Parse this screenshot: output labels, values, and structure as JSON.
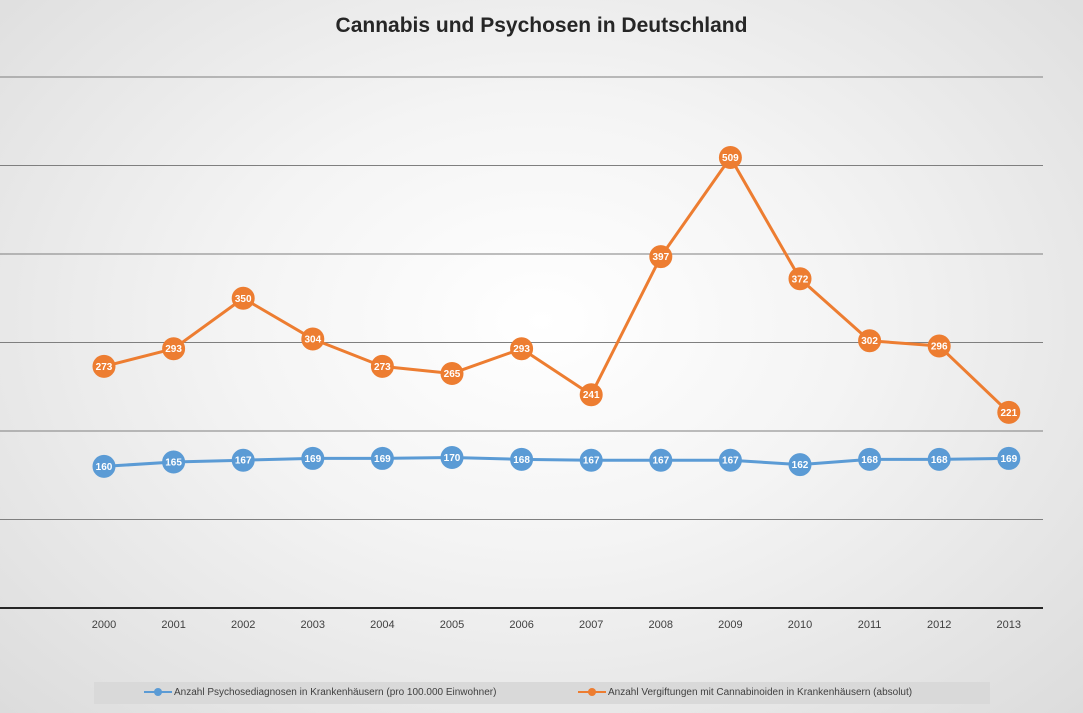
{
  "chart_data": {
    "type": "line",
    "title": "Cannabis und Psychosen in Deutschland",
    "xlabel": "",
    "ylabel": "",
    "categories": [
      "2000",
      "2001",
      "2002",
      "2003",
      "2004",
      "2005",
      "2006",
      "2007",
      "2008",
      "2009",
      "2010",
      "2011",
      "2012",
      "2013"
    ],
    "series": [
      {
        "name": "Anzahl Psychosediagnosen in Krankenhäusern (pro 100.000 Einwohner)",
        "color": "#5b9bd5",
        "values": [
          160,
          165,
          167,
          169,
          169,
          170,
          168,
          167,
          167,
          167,
          162,
          168,
          168,
          169
        ]
      },
      {
        "name": "Anzahl Vergiftungen mit Cannabinoiden in Krankenhäusern (absolut)",
        "color": "#ed7d31",
        "values": [
          273,
          293,
          350,
          304,
          273,
          265,
          293,
          241,
          397,
          509,
          372,
          302,
          296,
          221
        ]
      }
    ],
    "ylim": [
      0,
      600
    ],
    "grid": true,
    "legend_position": "bottom",
    "data_labels": true
  }
}
